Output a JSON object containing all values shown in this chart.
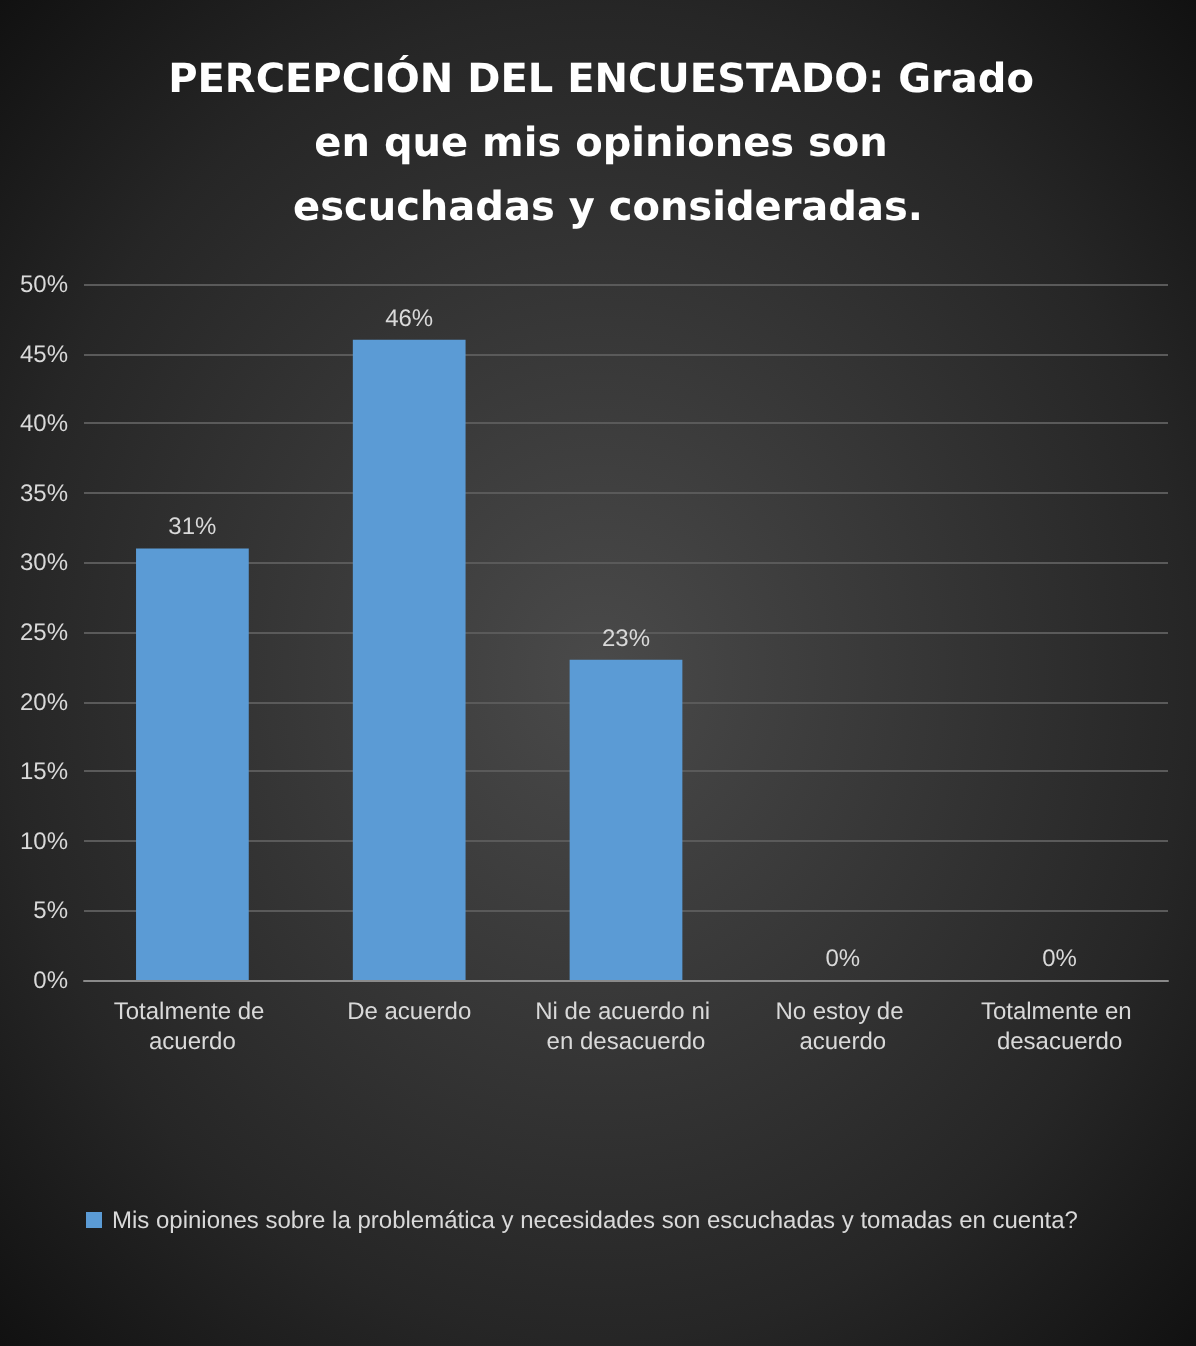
{
  "chart_data": {
    "type": "bar",
    "title": "PERCEPCIÓN DEL ENCUESTADO: Grado en que mis opiniones son escuchadas y consideradas.",
    "categories": [
      "Totalmente de acuerdo",
      "De acuerdo",
      "Ni de acuerdo ni en desacuerdo",
      "No estoy de acuerdo",
      "Totalmente en desacuerdo"
    ],
    "series": [
      {
        "name": "Mis opiniones sobre la problemática y necesidades son escuchadas y tomadas en cuenta?",
        "color": "#5b9bd5",
        "values": [
          31,
          46,
          23,
          0,
          0
        ],
        "value_labels": [
          "31%",
          "46%",
          "23%",
          "0%",
          "0%"
        ]
      }
    ],
    "ylim": [
      0,
      50
    ],
    "yticks": [
      {
        "value": 0,
        "label": "0%"
      },
      {
        "value": 5,
        "label": "5%"
      },
      {
        "value": 10,
        "label": "10%"
      },
      {
        "value": 15,
        "label": "15%"
      },
      {
        "value": 20,
        "label": "20%"
      },
      {
        "value": 25,
        "label": "25%"
      },
      {
        "value": 30,
        "label": "30%"
      },
      {
        "value": 35,
        "label": "35%"
      },
      {
        "value": 40,
        "label": "40%"
      },
      {
        "value": 45,
        "label": "45%"
      },
      {
        "value": 50,
        "label": "50%"
      }
    ],
    "grid": "y",
    "legend": "bottom"
  }
}
